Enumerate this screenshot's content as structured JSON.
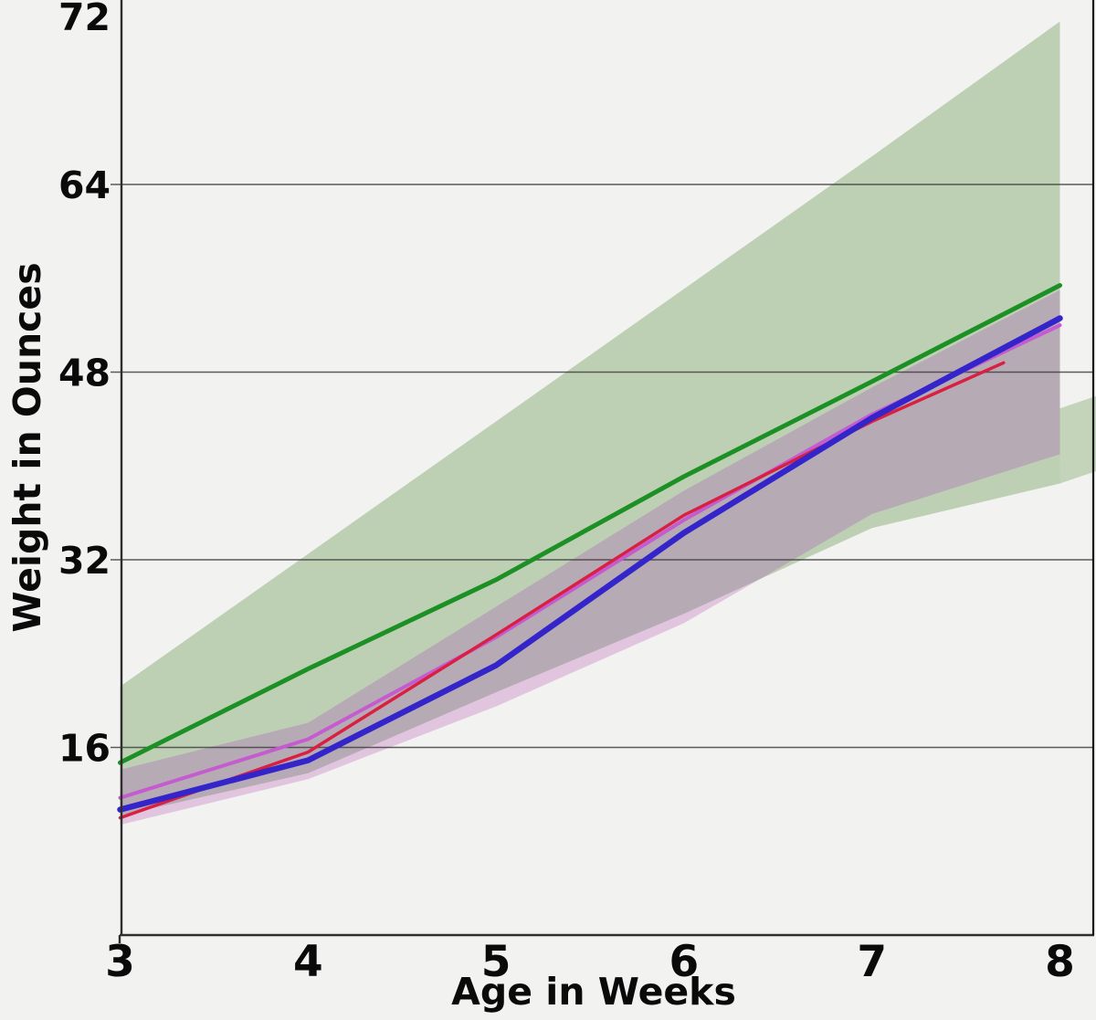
{
  "page": {
    "background_color": "#f2f2f1",
    "text_color": "#0a0a0a"
  },
  "chart_data": {
    "type": "line",
    "title": "",
    "xlabel": "Age in Weeks",
    "ylabel": "Weight in Ounces",
    "x": [
      3,
      4,
      5,
      6,
      7,
      8
    ],
    "xlim": [
      3,
      8.2
    ],
    "ylim": [
      0,
      79.7
    ],
    "grid": true,
    "legend": "none",
    "xticks": [
      {
        "label": "3",
        "value": 3
      },
      {
        "label": "4",
        "value": 4
      },
      {
        "label": "5",
        "value": 5
      },
      {
        "label": "6",
        "value": 6
      },
      {
        "label": "7",
        "value": 7
      },
      {
        "label": "8",
        "value": 8
      }
    ],
    "yticks": [
      {
        "label": "16",
        "value": 16,
        "grid": true,
        "at_top": false
      },
      {
        "label": "32",
        "value": 32,
        "grid": true,
        "at_top": false
      },
      {
        "label": "48",
        "value": 48,
        "grid": true,
        "at_top": false
      },
      {
        "label": "64",
        "value": 64,
        "grid": true,
        "at_top": false
      },
      {
        "label": "72",
        "value": 72,
        "grid": false,
        "at_top": true
      }
    ],
    "bands": [
      {
        "name": "green-band",
        "color": "#bdd0b3",
        "top": [
          21.2,
          32.5,
          43.8,
          55.1,
          66.4,
          77.9
        ],
        "bottom": [
          10.2,
          13.8,
          20.7,
          27.4,
          34.7,
          38.5
        ],
        "extend": {
          "x": [
            8.0,
            8.2
          ],
          "top": [
            44.9,
            46.0
          ],
          "bottom": [
            38.5,
            39.6
          ],
          "color": "#c4d4ba"
        }
      },
      {
        "name": "pink-band",
        "color": "#e1c5de",
        "overlap_color": "#b6aab4",
        "top": [
          14.1,
          18.1,
          28.0,
          37.9,
          46.7,
          55.0
        ],
        "bottom": [
          9.4,
          13.3,
          19.5,
          26.6,
          35.9,
          41.0
        ]
      }
    ],
    "series": [
      {
        "name": "green-line",
        "color": "#1c9025",
        "width": 5,
        "values": [
          14.7,
          22.7,
          30.3,
          39.1,
          47.2,
          55.4
        ]
      },
      {
        "name": "magenta-line",
        "color": "#c45ccf",
        "width": 4,
        "values": [
          11.7,
          16.7,
          25.4,
          35.4,
          44.4,
          52.0
        ]
      },
      {
        "name": "red-line",
        "color": "#d92042",
        "width": 3.5,
        "x": [
          3,
          4,
          5,
          6,
          7,
          7.7
        ],
        "values": [
          10.0,
          15.6,
          25.6,
          35.8,
          43.8,
          48.8
        ]
      },
      {
        "name": "blue-line",
        "color": "#3425cb",
        "width": 6.5,
        "values": [
          10.7,
          14.9,
          23.0,
          34.3,
          44.1,
          52.6
        ]
      }
    ],
    "style": {
      "grid_color": "#414141",
      "axis_color": "#2e2e2e",
      "right_border_color": "#161616"
    }
  }
}
